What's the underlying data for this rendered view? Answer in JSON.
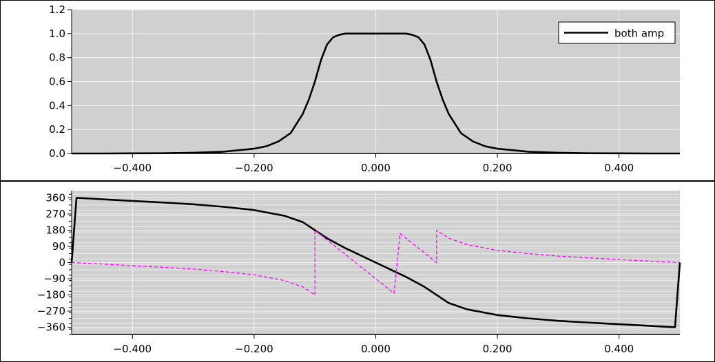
{
  "chart_data": [
    {
      "type": "line",
      "title": "",
      "xlabel": "",
      "ylabel": "",
      "xlim": [
        -0.5,
        0.5
      ],
      "ylim": [
        0,
        1.2
      ],
      "grid": true,
      "background": "#d0d0d0",
      "x_ticks": [
        -0.4,
        -0.2,
        0.0,
        0.2,
        0.4
      ],
      "x_tick_labels": [
        "−0.400",
        "−0.200",
        "0.000",
        "0.200",
        "0.400"
      ],
      "y_ticks": [
        0,
        0.2,
        0.4,
        0.6,
        0.8,
        1.0,
        1.2
      ],
      "y_tick_labels": [
        "0.0",
        "0.2",
        "0.4",
        "0.6",
        "0.8",
        "1.0",
        "1.2"
      ],
      "legend": {
        "position": "top-right",
        "entries": [
          "both amp"
        ]
      },
      "series": [
        {
          "name": "both amp",
          "color": "#000000",
          "style": "solid",
          "x": [
            -0.5,
            -0.45,
            -0.4,
            -0.35,
            -0.3,
            -0.25,
            -0.2,
            -0.18,
            -0.16,
            -0.14,
            -0.12,
            -0.11,
            -0.1,
            -0.09,
            -0.08,
            -0.07,
            -0.06,
            -0.05,
            -0.04,
            -0.02,
            0.0,
            0.02,
            0.04,
            0.05,
            0.06,
            0.07,
            0.08,
            0.09,
            0.1,
            0.11,
            0.12,
            0.14,
            0.16,
            0.18,
            0.2,
            0.25,
            0.3,
            0.35,
            0.4,
            0.45,
            0.5
          ],
          "values": [
            0.0,
            0.0,
            0.001,
            0.002,
            0.006,
            0.015,
            0.04,
            0.06,
            0.1,
            0.17,
            0.33,
            0.45,
            0.6,
            0.78,
            0.91,
            0.97,
            0.99,
            1.0,
            1.0,
            1.0,
            1.0,
            1.0,
            1.0,
            1.0,
            0.99,
            0.97,
            0.91,
            0.78,
            0.6,
            0.45,
            0.33,
            0.17,
            0.1,
            0.06,
            0.04,
            0.015,
            0.006,
            0.002,
            0.001,
            0.0,
            0.0
          ]
        }
      ]
    },
    {
      "type": "line",
      "title": "",
      "xlabel": "",
      "ylabel": "",
      "xlim": [
        -0.5,
        0.5
      ],
      "ylim": [
        -400,
        400
      ],
      "grid": true,
      "background": "#d0d0d0",
      "x_ticks": [
        -0.4,
        -0.2,
        0.0,
        0.2,
        0.4
      ],
      "x_tick_labels": [
        "−0.400",
        "−0.200",
        "0.000",
        "0.200",
        "0.400"
      ],
      "y_ticks": [
        -360,
        -270,
        -180,
        -90,
        0,
        90,
        180,
        270,
        360
      ],
      "y_tick_labels": [
        "−360",
        "−270",
        "−180",
        "−90",
        "0",
        "90",
        "180",
        "270",
        "360"
      ],
      "series": [
        {
          "color": "#000000",
          "style": "solid",
          "x": [
            -0.5,
            -0.492,
            -0.45,
            -0.4,
            -0.35,
            -0.3,
            -0.25,
            -0.2,
            -0.15,
            -0.12,
            -0.1,
            -0.08,
            -0.05,
            0.0,
            0.05,
            0.08,
            0.1,
            0.12,
            0.15,
            0.2,
            0.25,
            0.3,
            0.35,
            0.4,
            0.45,
            0.492,
            0.5
          ],
          "values": [
            0,
            360,
            352,
            343,
            334,
            324,
            310,
            292,
            260,
            225,
            180,
            135,
            80,
            0,
            -80,
            -135,
            -180,
            -225,
            -260,
            -292,
            -310,
            -324,
            -334,
            -343,
            -352,
            -360,
            0
          ]
        },
        {
          "color": "#ff00ff",
          "style": "dashed",
          "x": [
            -0.5,
            -0.45,
            -0.4,
            -0.35,
            -0.3,
            -0.25,
            -0.2,
            -0.15,
            -0.12,
            -0.1,
            -0.1,
            -0.09,
            -0.08,
            -0.07,
            -0.06,
            -0.05,
            -0.04,
            -0.03,
            -0.02,
            -0.01,
            0.0,
            0.01,
            0.02,
            0.03,
            0.04,
            0.05,
            0.06,
            0.07,
            0.08,
            0.09,
            0.1,
            0.1,
            0.12,
            0.15,
            0.2,
            0.25,
            0.3,
            0.35,
            0.4,
            0.45,
            0.5
          ],
          "values": [
            0,
            -8,
            -17,
            -26,
            -36,
            -50,
            -68,
            -100,
            -135,
            -180,
            180,
            153,
            126,
            99,
            72,
            45,
            18,
            -9,
            -36,
            -63,
            -90,
            -117,
            -144,
            -171,
            162,
            135,
            108,
            81,
            54,
            27,
            0,
            180,
            135,
            100,
            68,
            50,
            36,
            26,
            17,
            8,
            0
          ]
        }
      ]
    }
  ]
}
